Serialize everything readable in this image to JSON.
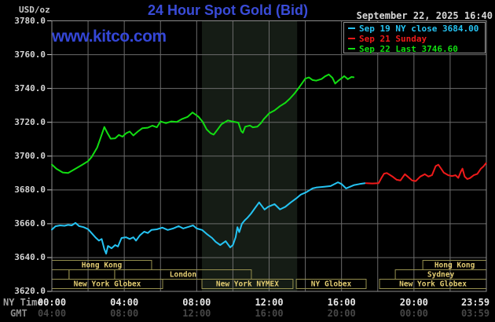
{
  "header": {
    "unit_label": "USD/oz",
    "title": "24 Hour Spot Gold (Bid)",
    "datetime": "September 22, 2025 16:40",
    "watermark": "www.kitco.com"
  },
  "colors": {
    "background": "#000000",
    "grid": "#6b6b6b",
    "plot_border": "#8c8c8c",
    "highlight_band": "#151c15",
    "tick": "#cccccc",
    "title_blue": "#3a4cd8",
    "watermark_blue": "#3446d6",
    "session_border": "#96904f",
    "session_text": "#e2cc72",
    "axis_text": "#d4d4d4",
    "gmt_text": "#474747",
    "series_sep19": "#25c3f2",
    "series_sep21": "#ef1a1a",
    "series_sep22": "#12dd12"
  },
  "legend": {
    "items": [
      {
        "label": "Sep 19 NY close 3684.00",
        "color": "#25c3f2"
      },
      {
        "label": "Sep 21 Sunday",
        "color": "#ef1a1a"
      },
      {
        "label": "Sep 22 Last 3746.60",
        "color": "#12dd12"
      }
    ]
  },
  "axes": {
    "y_ticks": [
      "3780.0",
      "3760.0",
      "3740.0",
      "3720.0",
      "3700.0",
      "3680.0",
      "3660.0",
      "3640.0",
      "3620.0"
    ],
    "x_rows": [
      {
        "label": "NY Time",
        "ticks": [
          "00:00",
          "04:00",
          "08:00",
          "12:00",
          "16:00",
          "20:00",
          "23:59"
        ]
      },
      {
        "label": "GMT",
        "ticks": [
          "04:00",
          "08:00",
          "12:00",
          "16:00",
          "20:00",
          "00:00",
          "03:59"
        ]
      }
    ]
  },
  "chart_data": {
    "type": "line",
    "title": "24 Hour Spot Gold (Bid)",
    "ylabel": "USD/oz",
    "ylim": [
      3620,
      3780
    ],
    "y_tick_step": 20,
    "x_range_hours": [
      0,
      24
    ],
    "x_tick_hours": [
      0,
      4,
      8,
      12,
      16,
      20,
      23.98
    ],
    "grid": true,
    "legend_position": "top-right",
    "highlight_band_hours": [
      8.29,
      13.55
    ],
    "sessions": {
      "rows": [
        {
          "name": "asia-row",
          "boxes": [
            {
              "label": "Hong Kong",
              "start": 0,
              "end": 5.51
            },
            {
              "label": "Hong Kong",
              "start": 20.49,
              "end": 24
            }
          ]
        },
        {
          "name": "europe-row",
          "boxes": [
            {
              "label": "",
              "start": 0,
              "end": 0.95
            },
            {
              "label": "",
              "start": 0.95,
              "end": 3.47
            },
            {
              "label": "London",
              "start": 3.47,
              "end": 11.02
            },
            {
              "label": "Sydney",
              "start": 18.97,
              "end": 24
            }
          ]
        },
        {
          "name": "america-row",
          "boxes": [
            {
              "label": "New York Globex",
              "start": 0,
              "end": 6.12
            },
            {
              "label": "New York NYMEX",
              "start": 8.29,
              "end": 13.32
            },
            {
              "label": "NY Globex",
              "start": 13.5,
              "end": 17.36
            },
            {
              "label": "New York Globex",
              "start": 18.1,
              "end": 24
            }
          ]
        }
      ]
    },
    "series": [
      {
        "name": "Sep 19 NY close",
        "close_value": 3684.0,
        "color": "#25c3f2",
        "points": [
          [
            0,
            3656.5
          ],
          [
            0.2,
            3658.5
          ],
          [
            0.45,
            3659
          ],
          [
            0.7,
            3658.8
          ],
          [
            0.9,
            3659.3
          ],
          [
            1.1,
            3659
          ],
          [
            1.3,
            3660.5
          ],
          [
            1.5,
            3658.6
          ],
          [
            1.75,
            3658
          ],
          [
            2.0,
            3656.8
          ],
          [
            2.2,
            3654.4
          ],
          [
            2.4,
            3652
          ],
          [
            2.6,
            3650
          ],
          [
            2.75,
            3651
          ],
          [
            2.9,
            3645
          ],
          [
            3.0,
            3642.3
          ],
          [
            3.1,
            3646.9
          ],
          [
            3.3,
            3645.5
          ],
          [
            3.5,
            3647.4
          ],
          [
            3.65,
            3646.5
          ],
          [
            3.85,
            3651.6
          ],
          [
            4.1,
            3652
          ],
          [
            4.3,
            3651
          ],
          [
            4.5,
            3652
          ],
          [
            4.65,
            3650
          ],
          [
            4.85,
            3653
          ],
          [
            5.1,
            3655.3
          ],
          [
            5.3,
            3654.5
          ],
          [
            5.5,
            3656.3
          ],
          [
            5.8,
            3656.7
          ],
          [
            6.1,
            3657.7
          ],
          [
            6.4,
            3656.3
          ],
          [
            6.7,
            3657.2
          ],
          [
            7.0,
            3658.6
          ],
          [
            7.25,
            3657.2
          ],
          [
            7.55,
            3658.2
          ],
          [
            7.8,
            3659
          ],
          [
            8.0,
            3657.2
          ],
          [
            8.3,
            3656.3
          ],
          [
            8.55,
            3654
          ],
          [
            8.85,
            3651.6
          ],
          [
            9.05,
            3649.3
          ],
          [
            9.3,
            3647.4
          ],
          [
            9.6,
            3649.7
          ],
          [
            9.85,
            3646
          ],
          [
            10.0,
            3647.4
          ],
          [
            10.15,
            3652
          ],
          [
            10.25,
            3658
          ],
          [
            10.35,
            3655
          ],
          [
            10.5,
            3660
          ],
          [
            10.65,
            3662
          ],
          [
            10.8,
            3663.5
          ],
          [
            11.0,
            3666
          ],
          [
            11.2,
            3669
          ],
          [
            11.45,
            3672.6
          ],
          [
            11.75,
            3668.4
          ],
          [
            11.95,
            3670
          ],
          [
            12.3,
            3671.6
          ],
          [
            12.6,
            3668.5
          ],
          [
            12.9,
            3670
          ],
          [
            13.2,
            3672.6
          ],
          [
            13.5,
            3675
          ],
          [
            13.75,
            3677.2
          ],
          [
            14.05,
            3678.6
          ],
          [
            14.4,
            3680.9
          ],
          [
            14.6,
            3681.4
          ],
          [
            15.05,
            3681.9
          ],
          [
            15.4,
            3682.3
          ],
          [
            15.8,
            3684.5
          ],
          [
            16.0,
            3683.5
          ],
          [
            16.25,
            3680.9
          ],
          [
            16.7,
            3682.9
          ],
          [
            17.0,
            3683.5
          ],
          [
            17.3,
            3684.0
          ]
        ]
      },
      {
        "name": "Sep 21 Sunday",
        "color": "#ef1a1a",
        "points": [
          [
            17.35,
            3684
          ],
          [
            17.7,
            3683.8
          ],
          [
            18.05,
            3684
          ],
          [
            18.2,
            3687
          ],
          [
            18.35,
            3689.6
          ],
          [
            18.5,
            3690
          ],
          [
            18.65,
            3689
          ],
          [
            18.8,
            3688
          ],
          [
            19.05,
            3686
          ],
          [
            19.25,
            3685.6
          ],
          [
            19.5,
            3689.3
          ],
          [
            19.7,
            3687.5
          ],
          [
            19.9,
            3685.6
          ],
          [
            20.1,
            3685.2
          ],
          [
            20.35,
            3687.9
          ],
          [
            20.6,
            3689.3
          ],
          [
            20.8,
            3687.9
          ],
          [
            21.0,
            3688.8
          ],
          [
            21.2,
            3694.1
          ],
          [
            21.35,
            3694.9
          ],
          [
            21.5,
            3692.6
          ],
          [
            21.65,
            3690.2
          ],
          [
            21.9,
            3688.7
          ],
          [
            22.1,
            3688.2
          ],
          [
            22.3,
            3688.7
          ],
          [
            22.45,
            3687.1
          ],
          [
            22.6,
            3691
          ],
          [
            22.68,
            3692.6
          ],
          [
            22.8,
            3687.9
          ],
          [
            22.95,
            3686.4
          ],
          [
            23.1,
            3687
          ],
          [
            23.3,
            3688.7
          ],
          [
            23.5,
            3689.5
          ],
          [
            23.7,
            3692.6
          ],
          [
            23.85,
            3694
          ],
          [
            23.98,
            3695.8
          ]
        ]
      },
      {
        "name": "Sep 22 Last",
        "last_value": 3746.6,
        "color": "#12dd12",
        "points": [
          [
            0,
            3695
          ],
          [
            0.25,
            3692.5
          ],
          [
            0.6,
            3690.3
          ],
          [
            0.9,
            3690
          ],
          [
            1.3,
            3692.5
          ],
          [
            1.7,
            3695
          ],
          [
            2.0,
            3697
          ],
          [
            2.2,
            3699.5
          ],
          [
            2.5,
            3705
          ],
          [
            2.7,
            3711
          ],
          [
            2.9,
            3717.2
          ],
          [
            3.05,
            3714
          ],
          [
            3.25,
            3710.3
          ],
          [
            3.5,
            3710.5
          ],
          [
            3.7,
            3712.5
          ],
          [
            3.9,
            3711.5
          ],
          [
            4.1,
            3713.5
          ],
          [
            4.3,
            3714.5
          ],
          [
            4.5,
            3712.2
          ],
          [
            4.75,
            3714.5
          ],
          [
            5.0,
            3716.5
          ],
          [
            5.3,
            3716.8
          ],
          [
            5.55,
            3718
          ],
          [
            5.8,
            3717
          ],
          [
            6.0,
            3720.5
          ],
          [
            6.3,
            3719.5
          ],
          [
            6.6,
            3720.5
          ],
          [
            6.9,
            3720.2
          ],
          [
            7.2,
            3722
          ],
          [
            7.5,
            3723.2
          ],
          [
            7.77,
            3725.8
          ],
          [
            8.1,
            3723.3
          ],
          [
            8.33,
            3720.3
          ],
          [
            8.55,
            3715.8
          ],
          [
            8.77,
            3713.5
          ],
          [
            8.94,
            3712.7
          ],
          [
            9.16,
            3715.8
          ],
          [
            9.37,
            3718.9
          ],
          [
            9.6,
            3720.3
          ],
          [
            9.72,
            3721.1
          ],
          [
            9.95,
            3720.5
          ],
          [
            10.3,
            3719.8
          ],
          [
            10.46,
            3714.8
          ],
          [
            10.55,
            3713.8
          ],
          [
            10.68,
            3717.4
          ],
          [
            10.94,
            3718.1
          ],
          [
            11.1,
            3717
          ],
          [
            11.35,
            3717.4
          ],
          [
            11.55,
            3719.5
          ],
          [
            11.7,
            3721.8
          ],
          [
            11.85,
            3723.5
          ],
          [
            12.0,
            3725.3
          ],
          [
            12.3,
            3727
          ],
          [
            12.6,
            3729.5
          ],
          [
            12.9,
            3731.5
          ],
          [
            13.15,
            3734
          ],
          [
            13.4,
            3737
          ],
          [
            13.65,
            3740.5
          ],
          [
            13.85,
            3743.5
          ],
          [
            14.0,
            3745.8
          ],
          [
            14.2,
            3746.5
          ],
          [
            14.4,
            3745
          ],
          [
            14.6,
            3744.6
          ],
          [
            14.9,
            3745.6
          ],
          [
            15.1,
            3747.2
          ],
          [
            15.3,
            3748.3
          ],
          [
            15.5,
            3746.3
          ],
          [
            15.65,
            3742.9
          ],
          [
            15.85,
            3744.8
          ],
          [
            16.0,
            3746
          ],
          [
            16.15,
            3747.3
          ],
          [
            16.35,
            3745.5
          ],
          [
            16.55,
            3746.8
          ],
          [
            16.67,
            3746.6
          ]
        ]
      }
    ]
  }
}
